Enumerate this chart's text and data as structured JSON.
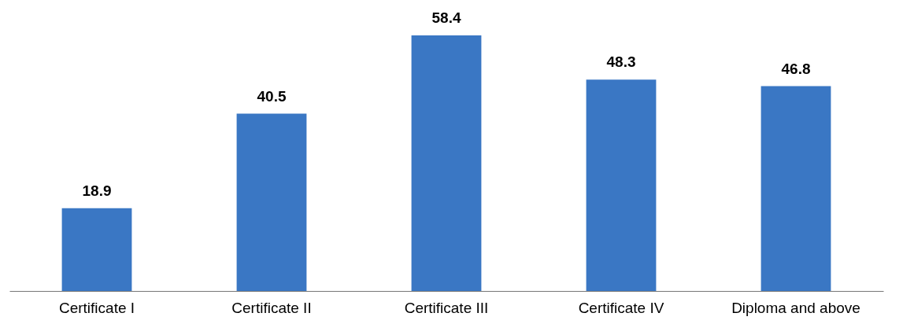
{
  "chart_data": {
    "type": "bar",
    "categories": [
      "Certificate I",
      "Certificate II",
      "Certificate III",
      "Certificate IV",
      "Diploma and above"
    ],
    "values": [
      18.9,
      40.5,
      58.4,
      48.3,
      46.8
    ],
    "color": "#3a77c4",
    "data_labels": true
  }
}
